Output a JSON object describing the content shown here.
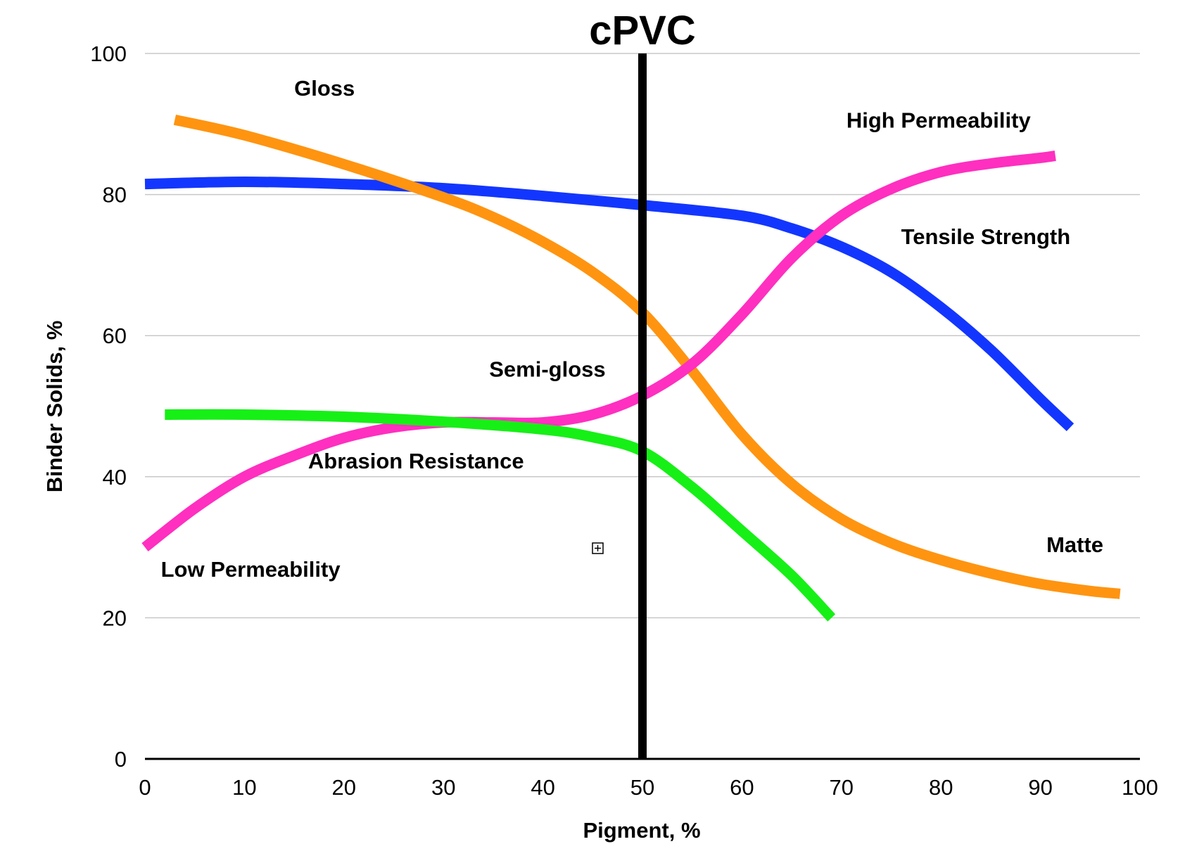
{
  "chart_data": {
    "type": "line",
    "title": "",
    "xlabel": "Pigment, %",
    "ylabel": "Binder Solids, %",
    "xlim": [
      0,
      100
    ],
    "ylim": [
      0,
      100
    ],
    "x_ticks": [
      "0",
      "10",
      "20",
      "30",
      "40",
      "50",
      "60",
      "70",
      "80",
      "90",
      "100"
    ],
    "y_ticks": [
      "0",
      "20",
      "40",
      "60",
      "80",
      "100"
    ],
    "grid": true,
    "legend": "none",
    "vertical_marker": {
      "x": 50,
      "label": "cPVC",
      "color": "#000000"
    },
    "series": [
      {
        "color": "#1336ff",
        "points": [
          [
            0,
            81.5
          ],
          [
            10,
            81.8
          ],
          [
            20,
            81.5
          ],
          [
            30,
            80.9
          ],
          [
            40,
            79.8
          ],
          [
            50,
            78.5
          ],
          [
            60,
            77.0
          ],
          [
            65,
            75.2
          ],
          [
            70,
            72.6
          ],
          [
            75,
            69.0
          ],
          [
            80,
            64.0
          ],
          [
            85,
            58.0
          ],
          [
            90,
            51.0
          ],
          [
            93,
            47.0
          ]
        ]
      },
      {
        "color": "#ff9410",
        "points": [
          [
            3,
            90.6
          ],
          [
            10,
            88.4
          ],
          [
            20,
            84.3
          ],
          [
            30,
            79.6
          ],
          [
            35,
            76.8
          ],
          [
            40,
            73.3
          ],
          [
            45,
            69.0
          ],
          [
            50,
            63.3
          ],
          [
            55,
            55.0
          ],
          [
            60,
            46.0
          ],
          [
            65,
            39.0
          ],
          [
            70,
            34.0
          ],
          [
            75,
            30.6
          ],
          [
            80,
            28.2
          ],
          [
            85,
            26.3
          ],
          [
            90,
            24.8
          ],
          [
            95,
            23.8
          ],
          [
            98,
            23.4
          ]
        ]
      },
      {
        "color": "#ff2fc0",
        "points": [
          [
            0,
            30.0
          ],
          [
            5,
            35.5
          ],
          [
            10,
            40.0
          ],
          [
            15,
            43.0
          ],
          [
            20,
            45.5
          ],
          [
            25,
            47.0
          ],
          [
            30,
            47.7
          ],
          [
            35,
            47.7
          ],
          [
            40,
            47.7
          ],
          [
            45,
            48.8
          ],
          [
            50,
            51.5
          ],
          [
            55,
            56.0
          ],
          [
            60,
            63.0
          ],
          [
            65,
            71.0
          ],
          [
            70,
            77.0
          ],
          [
            75,
            80.8
          ],
          [
            80,
            83.2
          ],
          [
            85,
            84.4
          ],
          [
            90,
            85.2
          ],
          [
            91.5,
            85.5
          ]
        ]
      },
      {
        "color": "#16f016",
        "points": [
          [
            2,
            48.8
          ],
          [
            10,
            48.8
          ],
          [
            20,
            48.5
          ],
          [
            30,
            47.8
          ],
          [
            40,
            46.7
          ],
          [
            45,
            45.6
          ],
          [
            50,
            43.6
          ],
          [
            55,
            38.5
          ],
          [
            60,
            32.3
          ],
          [
            65,
            26.0
          ],
          [
            69,
            20.0
          ]
        ]
      }
    ],
    "annotations": [
      {
        "text": "Gloss",
        "x": 15.0,
        "y": 94.0
      },
      {
        "text": "High Permeability",
        "x": 70.5,
        "y": 89.5
      },
      {
        "text": "Tensile Strength",
        "x": 76.0,
        "y": 73.0
      },
      {
        "text": "Semi-gloss",
        "x": 34.6,
        "y": 54.2
      },
      {
        "text": "Abrasion Resistance",
        "x": 16.4,
        "y": 41.2
      },
      {
        "text": "Low Permeability",
        "x": 1.6,
        "y": 25.8
      },
      {
        "text": "Matte",
        "x": 90.6,
        "y": 29.3
      }
    ]
  }
}
